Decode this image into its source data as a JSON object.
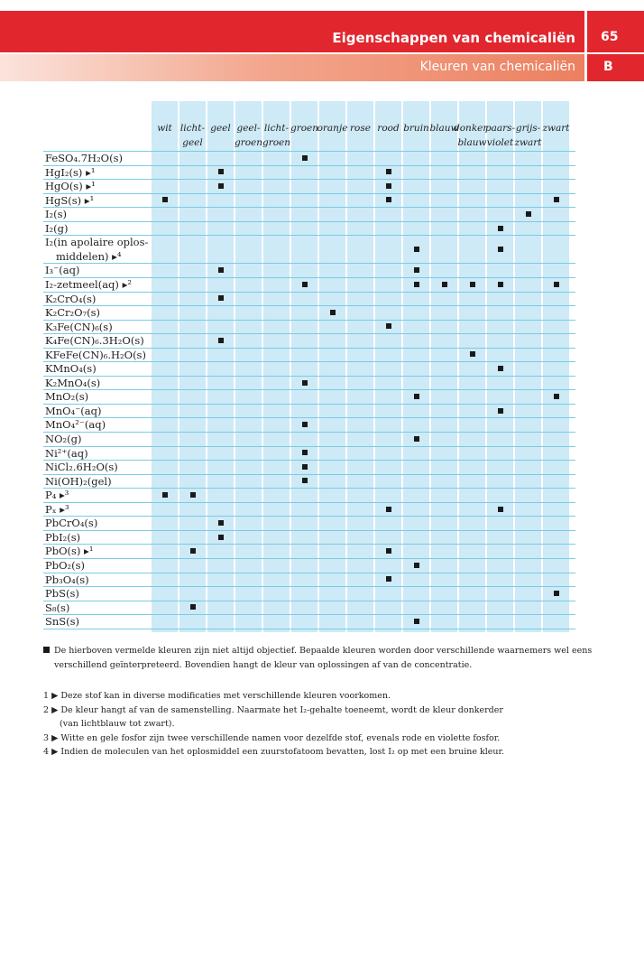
{
  "header": {
    "title": "Eigenschappen van chemicaliën",
    "subtitle": "Kleuren van chemicaliën",
    "page_number": "65",
    "section": "B"
  },
  "table": {
    "columns": [
      {
        "l1": "wit",
        "l2": ""
      },
      {
        "l1": "licht-",
        "l2": "geel"
      },
      {
        "l1": "geel",
        "l2": ""
      },
      {
        "l1": "geel-",
        "l2": "groen"
      },
      {
        "l1": "licht-",
        "l2": "groen"
      },
      {
        "l1": "groen",
        "l2": ""
      },
      {
        "l1": "oranje",
        "l2": ""
      },
      {
        "l1": "rose",
        "l2": ""
      },
      {
        "l1": "rood",
        "l2": ""
      },
      {
        "l1": "bruin",
        "l2": ""
      },
      {
        "l1": "blauw",
        "l2": ""
      },
      {
        "l1": "donker-",
        "l2": "blauw"
      },
      {
        "l1": "paars-",
        "l2": "violet"
      },
      {
        "l1": "grijs-",
        "l2": "zwart"
      },
      {
        "l1": "zwart",
        "l2": ""
      }
    ],
    "rows": [
      {
        "label": "FeSO₄.7H₂O(s)",
        "marks": [
          5
        ]
      },
      {
        "label": "HgI₂(s) ▸¹",
        "marks": [
          2,
          8
        ]
      },
      {
        "label": "HgO(s) ▸¹",
        "marks": [
          2,
          8
        ]
      },
      {
        "label": "HgS(s) ▸¹",
        "marks": [
          0,
          8,
          14
        ]
      },
      {
        "label": "I₂(s)",
        "marks": [
          13
        ]
      },
      {
        "label": "I₂(g)",
        "marks": [
          12
        ]
      },
      {
        "label": "I₂(in apolaire oplos-",
        "label2": "middelen) ▸⁴",
        "marks": [
          9,
          12
        ]
      },
      {
        "label": "I₃⁻(aq)",
        "marks": [
          2,
          9
        ]
      },
      {
        "label": "I₂-zetmeel(aq) ▸²",
        "marks": [
          5,
          9,
          10,
          11,
          12,
          14
        ]
      },
      {
        "label": "K₂CrO₄(s)",
        "marks": [
          2
        ]
      },
      {
        "label": "K₂Cr₂O₇(s)",
        "marks": [
          6
        ]
      },
      {
        "label": "K₃Fe(CN)₆(s)",
        "marks": [
          8
        ]
      },
      {
        "label": "K₄Fe(CN)₆.3H₂O(s)",
        "marks": [
          2
        ]
      },
      {
        "label": "KFeFe(CN)₆.H₂O(s)",
        "marks": [
          11
        ]
      },
      {
        "label": "KMnO₄(s)",
        "marks": [
          12
        ]
      },
      {
        "label": "K₂MnO₄(s)",
        "marks": [
          5
        ]
      },
      {
        "label": "MnO₂(s)",
        "marks": [
          9,
          14
        ]
      },
      {
        "label": "MnO₄⁻(aq)",
        "marks": [
          12
        ]
      },
      {
        "label": "MnO₄²⁻(aq)",
        "marks": [
          5
        ]
      },
      {
        "label": "NO₂(g)",
        "marks": [
          9
        ]
      },
      {
        "label": "Ni²⁺(aq)",
        "marks": [
          5
        ]
      },
      {
        "label": "NiCl₂.6H₂O(s)",
        "marks": [
          5
        ]
      },
      {
        "label": "Ni(OH)₂(gel)",
        "marks": [
          5
        ]
      },
      {
        "label": "P₄ ▸³",
        "marks": [
          0,
          1
        ]
      },
      {
        "label": "Pₓ ▸³",
        "marks": [
          8,
          12
        ]
      },
      {
        "label": "PbCrO₄(s)",
        "marks": [
          2
        ]
      },
      {
        "label": "PbI₂(s)",
        "marks": [
          2
        ]
      },
      {
        "label": "PbO(s) ▸¹",
        "marks": [
          1,
          8
        ]
      },
      {
        "label": "PbO₂(s)",
        "marks": [
          9
        ]
      },
      {
        "label": "Pb₃O₄(s)",
        "marks": [
          8
        ]
      },
      {
        "label": "PbS(s)",
        "marks": [
          14
        ]
      },
      {
        "label": "S₈(s)",
        "marks": [
          1
        ]
      },
      {
        "label": "SnS(s)",
        "marks": [
          9
        ]
      }
    ]
  },
  "notes": {
    "main1": "De hierboven vermelde kleuren zijn niet altijd objectief. Bepaalde kleuren worden door verschillende waarnemers wel eens",
    "main2": "verschillend geïnterpreteerd. Bovendien hangt de kleur van oplossingen af van de concentratie.",
    "f1": "1 ▶ Deze stof kan in diverse modificaties met verschillende kleuren voorkomen.",
    "f2a": "2 ▶ De kleur hangt af van de samenstelling. Naarmate het I₂-gehalte toeneemt, wordt de kleur donkerder",
    "f2b": "(van lichtblauw tot zwart).",
    "f3": "3 ▶ Witte en gele fosfor zijn twee verschillende namen voor dezelfde stof, evenals rode en violette fosfor.",
    "f4": "4 ▶ Indien de moleculen van het oplosmiddel een zuurstofatoom bevatten, lost I₂ op met een bruine kleur."
  }
}
